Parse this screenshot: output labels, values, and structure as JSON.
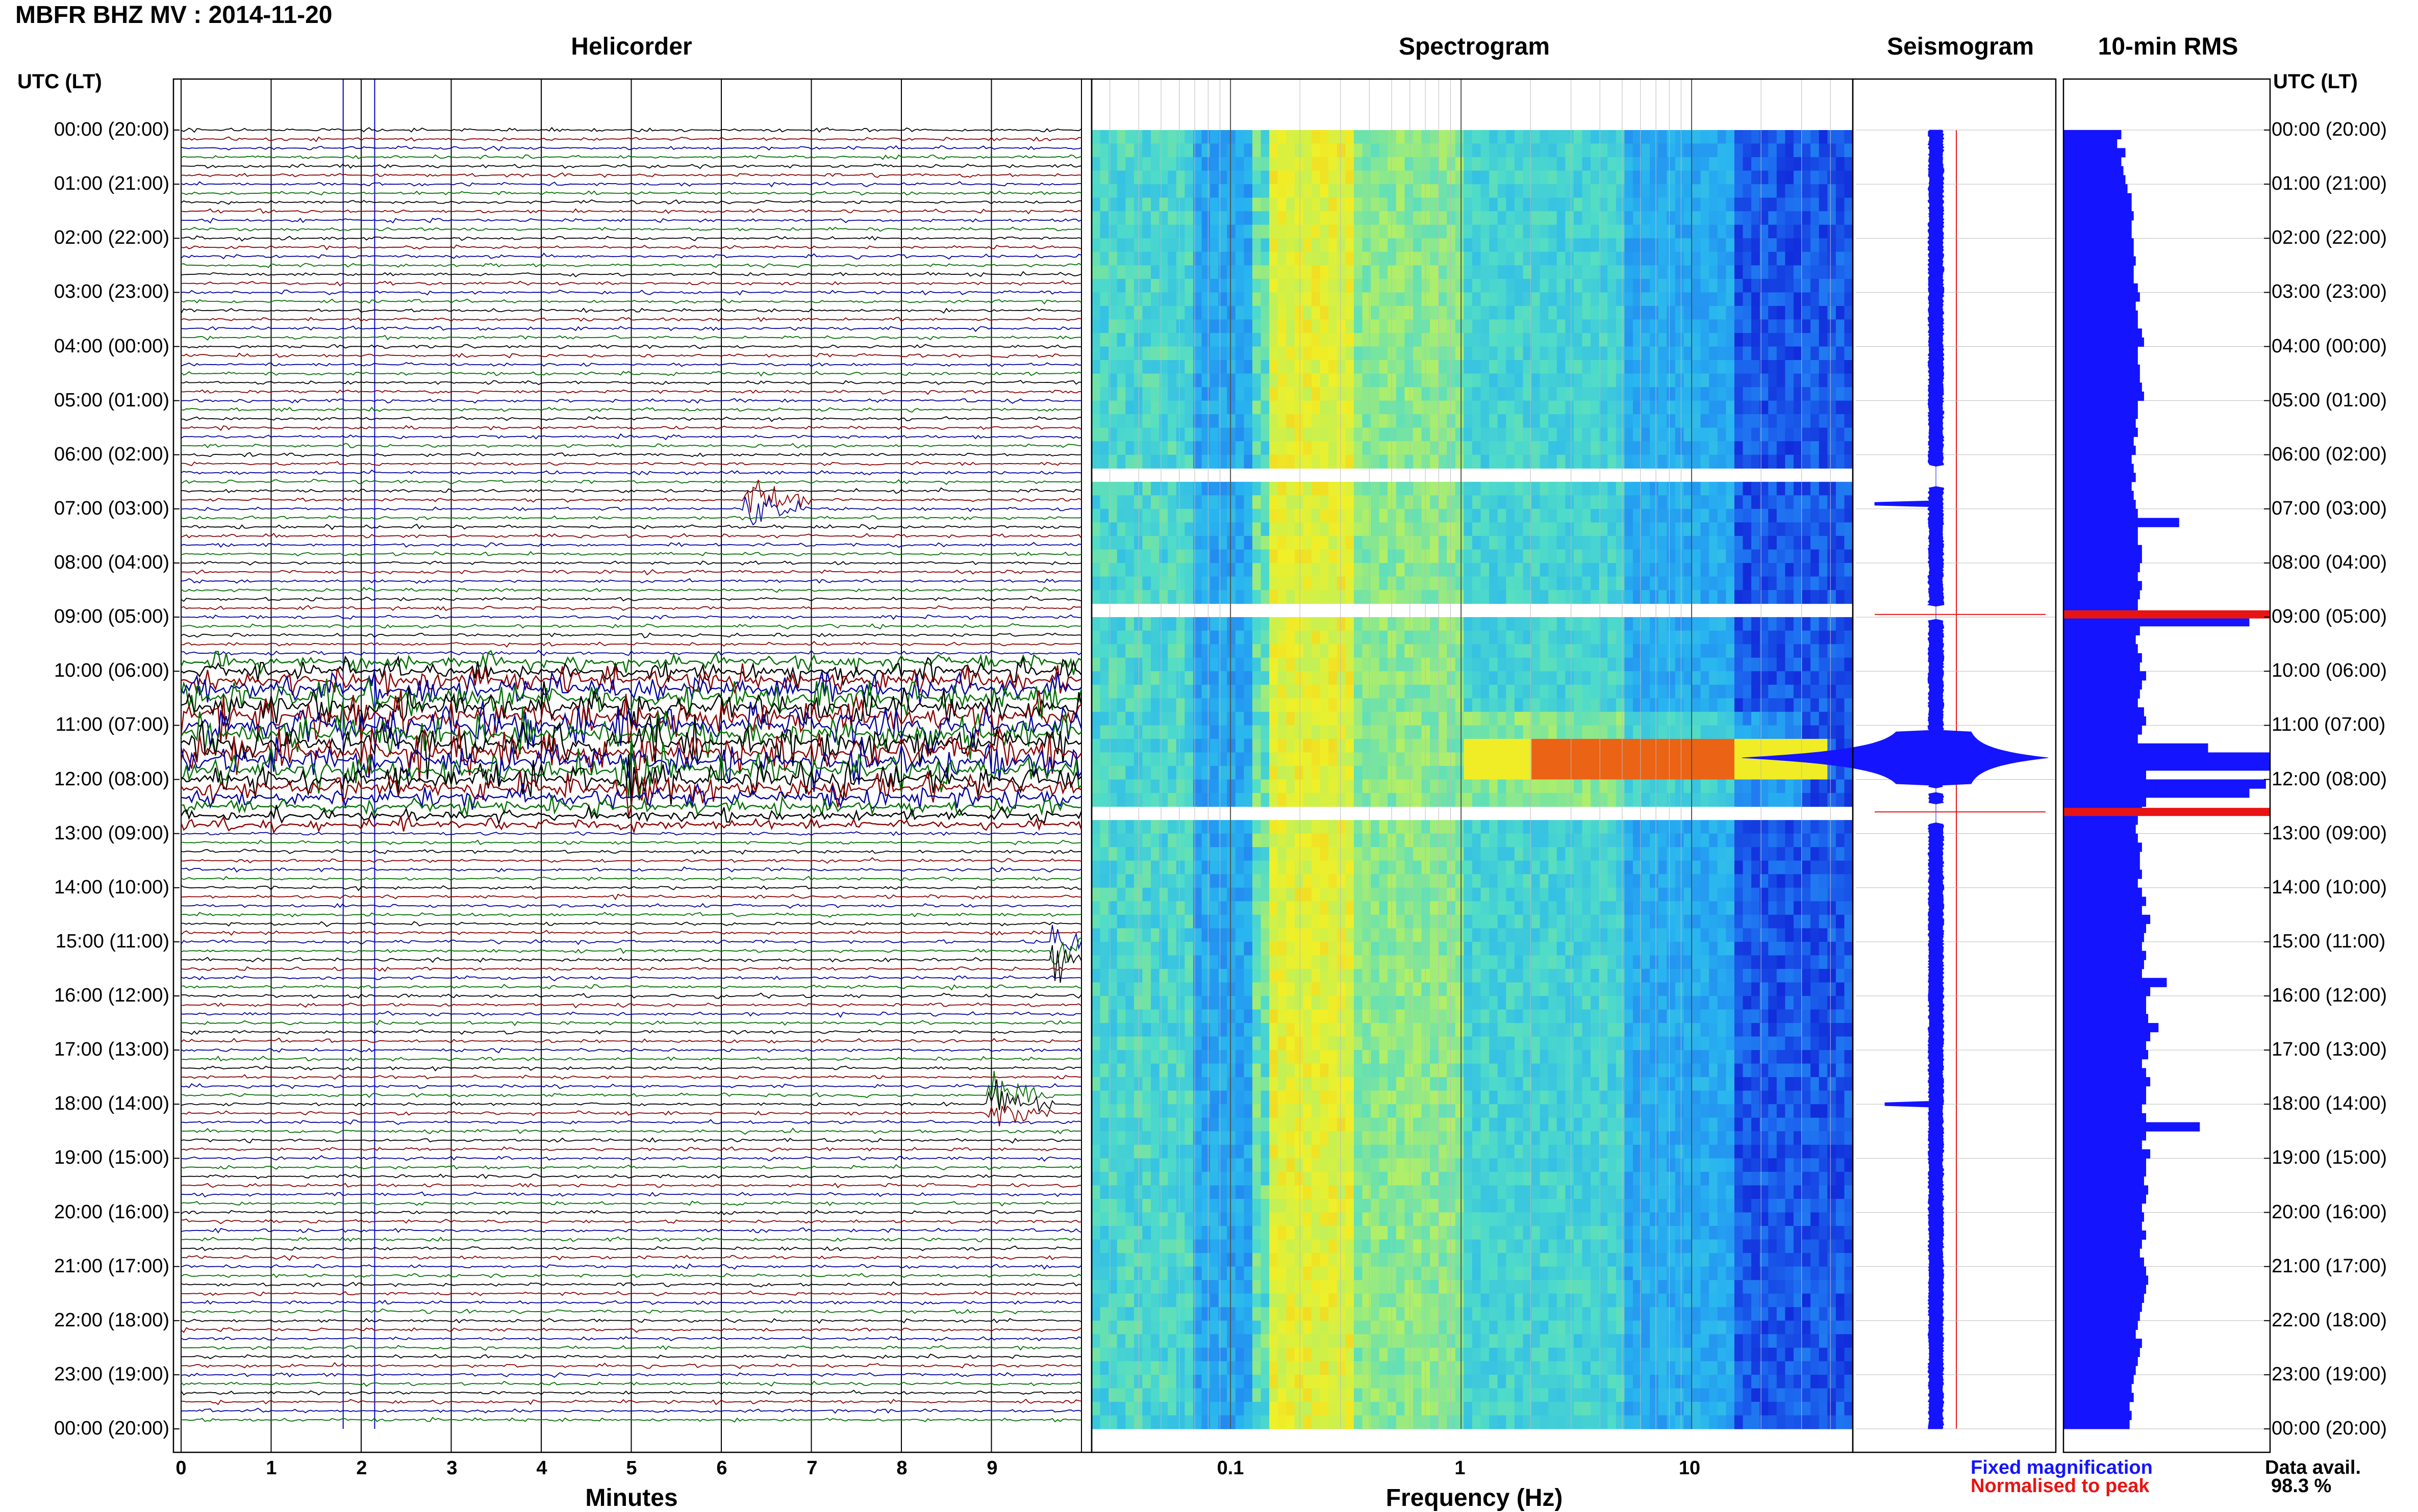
{
  "header": {
    "title": "MBFR BHZ MV : 2014-11-20"
  },
  "panels": {
    "helicorder_title": "Helicorder",
    "spectrogram_title": "Spectrogram",
    "seismogram_title": "Seismogram",
    "rms_title": "10-min RMS"
  },
  "time_axis": {
    "left_header": "UTC (LT)",
    "right_header": "UTC (LT)",
    "labels": [
      "00:00 (20:00)",
      "01:00 (21:00)",
      "02:00 (22:00)",
      "03:00 (23:00)",
      "04:00 (00:00)",
      "05:00 (01:00)",
      "06:00 (02:00)",
      "07:00 (03:00)",
      "08:00 (04:00)",
      "09:00 (05:00)",
      "10:00 (06:00)",
      "11:00 (07:00)",
      "12:00 (08:00)",
      "13:00 (09:00)",
      "14:00 (10:00)",
      "15:00 (11:00)",
      "16:00 (12:00)",
      "17:00 (13:00)",
      "18:00 (14:00)",
      "19:00 (15:00)",
      "20:00 (16:00)",
      "21:00 (17:00)",
      "22:00 (18:00)",
      "23:00 (19:00)",
      "00:00 (20:00)"
    ]
  },
  "legend": {
    "fixed": "Fixed magnification",
    "normalised": "Normalised to peak",
    "fixed_color": "#1414ff",
    "normalised_color": "#e81414"
  },
  "availability": {
    "label": "Data avail.",
    "value": "98.3 %"
  },
  "chart_data": [
    {
      "type": "line",
      "title": "Helicorder",
      "xlabel": "Minutes",
      "ylabel": "UTC (LT)",
      "xlim": [
        0,
        10
      ],
      "x_ticks": [
        "0",
        "1",
        "2",
        "3",
        "4",
        "5",
        "6",
        "7",
        "8",
        "9"
      ],
      "trace_colors": [
        "#000000",
        "#8b0000",
        "#0000a0",
        "#007000"
      ],
      "traces_per_hour": 6,
      "high_amplitude_hours": [
        9.7,
        12.9
      ],
      "events": [
        {
          "hour": 6.9,
          "minute": 6.3
        },
        {
          "hour": 15.2,
          "minute": 9.7
        },
        {
          "hour": 18.0,
          "minute": 9.0
        },
        {
          "hour": 12.0,
          "minute": 5.0
        }
      ]
    },
    {
      "type": "heatmap",
      "title": "Spectrogram",
      "xlabel": "Frequency (Hz)",
      "x_scale": "log",
      "xlim": [
        0.025,
        50
      ],
      "x_ticks": [
        "0.1",
        "1",
        "10"
      ],
      "colormap": [
        "#0a0ad0",
        "#1e6ef0",
        "#28b4f0",
        "#50dcc8",
        "#b4f064",
        "#f0f028",
        "#f0a014",
        "#e62814"
      ],
      "dominant_band_hz": [
        0.15,
        0.35
      ],
      "peak_event": {
        "hour": 11.6,
        "freq_range_hz": [
          2,
          15
        ]
      }
    },
    {
      "type": "line",
      "title": "Seismogram",
      "series": [
        {
          "name": "Fixed magnification",
          "color": "#1414ff"
        },
        {
          "name": "Normalised to peak",
          "color": "#e81414"
        }
      ],
      "peak_hours": [
        11.6,
        6.9,
        18.0
      ]
    },
    {
      "type": "bar",
      "title": "10-min RMS",
      "orientation": "horizontal",
      "ylabel": "UTC (LT)",
      "values_relative": [
        0.28,
        0.26,
        0.3,
        0.28,
        0.29,
        0.3,
        0.31,
        0.33,
        0.33,
        0.34,
        0.33,
        0.33,
        0.34,
        0.34,
        0.35,
        0.34,
        0.34,
        0.36,
        0.37,
        0.35,
        0.36,
        0.36,
        0.38,
        0.39,
        0.36,
        0.36,
        0.37,
        0.37,
        0.38,
        0.39,
        0.36,
        0.36,
        0.35,
        0.36,
        0.34,
        0.35,
        0.33,
        0.34,
        0.35,
        0.33,
        0.34,
        0.35,
        0.36,
        0.56,
        0.36,
        0.36,
        0.38,
        0.38,
        0.37,
        0.36,
        0.38,
        0.37,
        0.36,
        0.36,
        0.9,
        0.37,
        0.35,
        0.36,
        0.38,
        0.37,
        0.4,
        0.38,
        0.37,
        0.36,
        0.39,
        0.4,
        0.38,
        0.36,
        0.7,
        1.0,
        1.0,
        0.4,
        0.98,
        0.9,
        0.4,
        0.38,
        0.36,
        0.35,
        0.36,
        0.38,
        0.37,
        0.37,
        0.38,
        0.36,
        0.38,
        0.4,
        0.38,
        0.42,
        0.4,
        0.39,
        0.38,
        0.4,
        0.39,
        0.38,
        0.5,
        0.42,
        0.4,
        0.4,
        0.41,
        0.46,
        0.42,
        0.4,
        0.41,
        0.38,
        0.4,
        0.42,
        0.4,
        0.4,
        0.38,
        0.4,
        0.66,
        0.4,
        0.38,
        0.42,
        0.4,
        0.4,
        0.39,
        0.41,
        0.4,
        0.38,
        0.39,
        0.38,
        0.4,
        0.38,
        0.37,
        0.39,
        0.4,
        0.41,
        0.4,
        0.39,
        0.38,
        0.37,
        0.36,
        0.35,
        0.38,
        0.37,
        0.36,
        0.35,
        0.34,
        0.33,
        0.34,
        0.32,
        0.33,
        0.32
      ],
      "red_bar_hours": [
        8.95,
        12.6
      ]
    }
  ]
}
